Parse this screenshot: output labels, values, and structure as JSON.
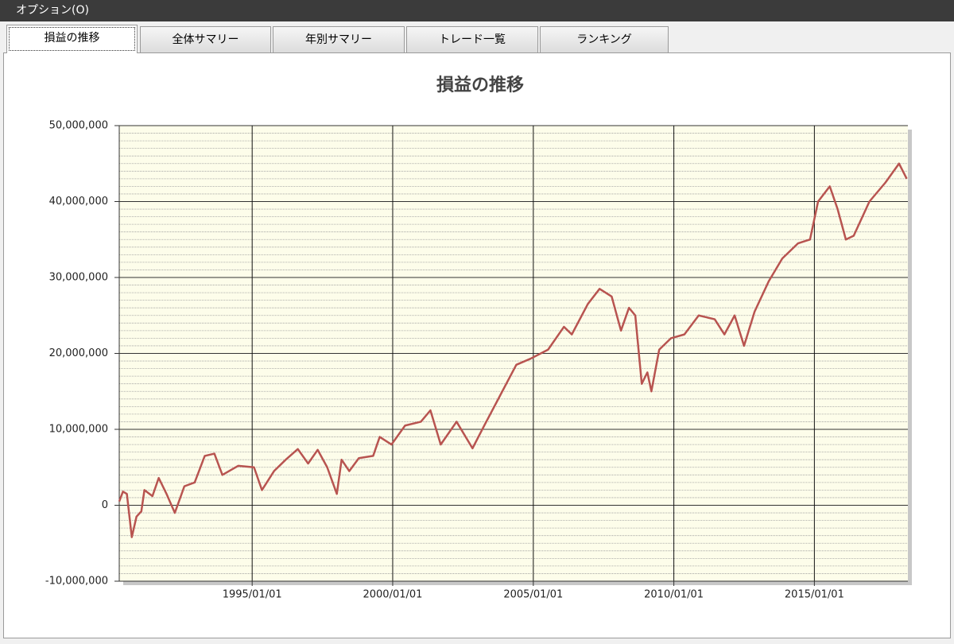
{
  "menu": {
    "label": "オプション(O)"
  },
  "tabs": [
    "損益の推移",
    "全体サマリー",
    "年別サマリー",
    "トレード一覧",
    "ランキング"
  ],
  "chart_data": {
    "type": "line",
    "title": "損益の推移",
    "x": [
      "1990/04/10",
      "1990/05/28",
      "1990/07/18",
      "1990/09/20",
      "1990/11/20",
      "1991/01/22",
      "1991/03/03",
      "1991/06/15",
      "1991/09/05",
      "1991/12/15",
      "1992/04/01",
      "1992/08/03",
      "1992/12/15",
      "1993/04/25",
      "1993/08/28",
      "1993/12/10",
      "1994/07/05",
      "1995/01/25",
      "1995/05/08",
      "1995/10/12",
      "1996/03/12",
      "1996/08/16",
      "1996/12/28",
      "1997/05/01",
      "1997/09/02",
      "1998/01/05",
      "1998/03/08",
      "1998/06/16",
      "1998/10/18",
      "1999/04/22",
      "1999/07/16",
      "1999/12/16",
      "2000/06/10",
      "2001/01/01",
      "2001/05/05",
      "2001/09/16",
      "2002/04/10",
      "2002/11/03",
      "2003/04/05",
      "2003/10/30",
      "2004/05/25",
      "2004/11/25",
      "2005/07/12",
      "2006/02/03",
      "2006/05/16",
      "2006/12/10",
      "2007/05/12",
      "2007/10/16",
      "2008/02/14",
      "2008/05/28",
      "2008/08/18",
      "2008/11/10",
      "2009/01/22",
      "2009/03/15",
      "2009/06/25",
      "2009/11/25",
      "2010/05/18",
      "2010/11/20",
      "2011/06/16",
      "2011/10/20",
      "2012/03/01",
      "2012/07/01",
      "2012/11/15",
      "2013/05/18",
      "2013/11/10",
      "2014/06/03",
      "2014/11/05",
      "2015/02/18",
      "2015/07/20",
      "2015/10/30",
      "2016/02/14",
      "2016/05/26",
      "2016/12/16",
      "2017/07/12",
      "2018/01/05",
      "2018/04/15"
    ],
    "series": [
      {
        "name": "損益",
        "color": "#b85450",
        "values": [
          500000,
          1800000,
          1500000,
          -4200000,
          -1500000,
          -800000,
          2000000,
          1200000,
          3600000,
          1500000,
          -1000000,
          2500000,
          3000000,
          6500000,
          6800000,
          4000000,
          5200000,
          5000000,
          2000000,
          4500000,
          6000000,
          7400000,
          5500000,
          7300000,
          5000000,
          1500000,
          6000000,
          4500000,
          6200000,
          6500000,
          9000000,
          8000000,
          10500000,
          11000000,
          12500000,
          8000000,
          11000000,
          7500000,
          10500000,
          14500000,
          18500000,
          19300000,
          20500000,
          23500000,
          22500000,
          26500000,
          28500000,
          27500000,
          23000000,
          26000000,
          25000000,
          16000000,
          17500000,
          15000000,
          20500000,
          22000000,
          22500000,
          25000000,
          24500000,
          22500000,
          25000000,
          21000000,
          25500000,
          29500000,
          32500000,
          34500000,
          35000000,
          40000000,
          42000000,
          39000000,
          35000000,
          35500000,
          40000000,
          42500000,
          45000000,
          43000000
        ]
      }
    ],
    "xlim": [
      "1990/04/10",
      "2018/04/30"
    ],
    "xticks": [
      "1995/01/01",
      "2000/01/01",
      "2005/01/01",
      "2010/01/01",
      "2015/01/01"
    ],
    "ylim": [
      -10000000,
      50000000
    ],
    "yticks": [
      {
        "value": -10000000,
        "label": "-10,000,000"
      },
      0,
      {
        "value": 10000000,
        "label": "10,000,000"
      },
      {
        "value": 20000000,
        "label": "20,000,000"
      },
      {
        "value": 30000000,
        "label": "30,000,000"
      },
      {
        "value": 40000000,
        "label": "40,000,000"
      },
      {
        "value": 50000000,
        "label": "50,000,000"
      }
    ],
    "minor_ytick_step": 1000000,
    "grid": true
  }
}
